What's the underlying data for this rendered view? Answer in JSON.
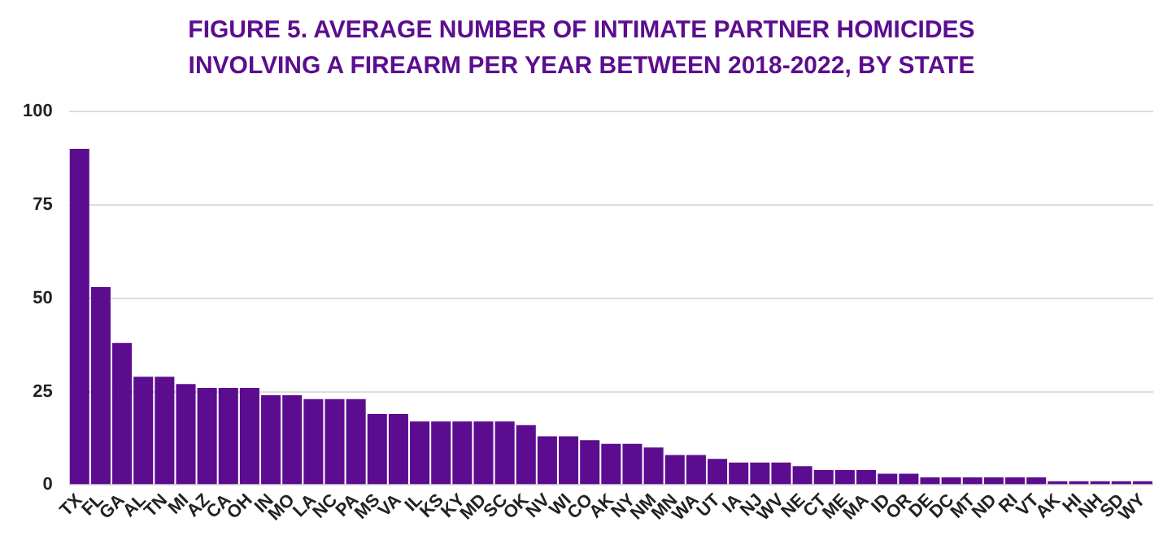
{
  "chart_data": {
    "type": "bar",
    "title": "FIGURE 5. AVERAGE NUMBER OF INTIMATE PARTNER HOMICIDES\nINVOLVING A FIREARM PER YEAR BETWEEN 2018-2022, BY STATE",
    "categories": [
      "TX",
      "FL",
      "GA",
      "AL",
      "TN",
      "MI",
      "AZ",
      "CA",
      "OH",
      "IN",
      "MO",
      "LA",
      "NC",
      "PA",
      "MS",
      "VA",
      "IL",
      "KS",
      "KY",
      "MD",
      "SC",
      "OK",
      "NV",
      "WI",
      "CO",
      "AK",
      "NY",
      "NM",
      "MN",
      "WA",
      "UT",
      "IA",
      "NJ",
      "WV",
      "NE",
      "CT",
      "ME",
      "MA",
      "ID",
      "OR",
      "DE",
      "DC",
      "MT",
      "ND",
      "RI",
      "VT",
      "AK",
      "HI",
      "NH",
      "SD",
      "WY"
    ],
    "values": [
      90,
      53,
      38,
      29,
      29,
      27,
      26,
      26,
      26,
      24,
      24,
      23,
      23,
      23,
      19,
      19,
      17,
      17,
      17,
      17,
      17,
      16,
      13,
      13,
      12,
      11,
      11,
      10,
      8,
      8,
      7,
      6,
      6,
      6,
      5,
      4,
      4,
      4,
      3,
      3,
      2,
      2,
      2,
      2,
      2,
      2,
      1,
      1,
      1,
      1,
      1
    ],
    "color": "#5c0d8f",
    "ylim": [
      0,
      100
    ],
    "yticks": [
      0,
      25,
      50,
      75,
      100
    ],
    "grid": "y"
  }
}
